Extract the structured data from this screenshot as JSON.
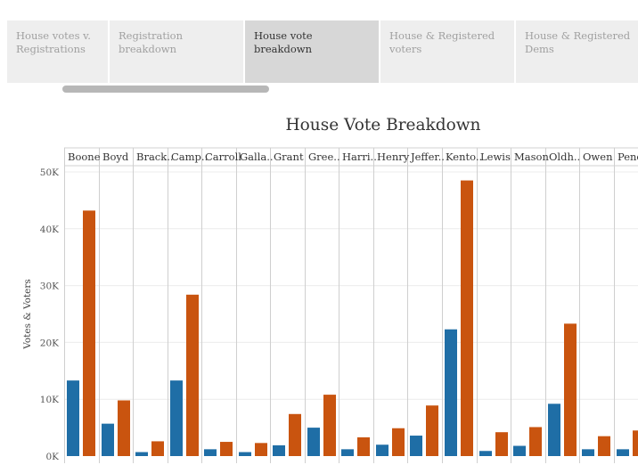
{
  "tabs": [
    {
      "label": "House votes v. Registrations",
      "active": false
    },
    {
      "label": "Registration breakdown",
      "active": false
    },
    {
      "label": "House vote breakdown",
      "active": true
    },
    {
      "label": "House & Registered voters",
      "active": false
    },
    {
      "label": "House & Registered Dems",
      "active": false
    }
  ],
  "chart_data": {
    "type": "bar",
    "title": "House Vote Breakdown",
    "xlabel": "",
    "ylabel": "Votes & Voters",
    "ylim": [
      0,
      50000
    ],
    "yticks": [
      0,
      10000,
      20000,
      30000,
      40000,
      50000
    ],
    "ytick_labels": [
      "0K",
      "10K",
      "20K",
      "30K",
      "40K",
      "50K"
    ],
    "grid": true,
    "categories": [
      "Boone",
      "Boyd",
      "Brack..",
      "Camp..",
      "Carroll",
      "Galla..",
      "Grant",
      "Gree..",
      "Harri..",
      "Henry",
      "Jeffer..",
      "Kento..",
      "Lewis",
      "Mason",
      "Oldh..",
      "Owen",
      "Pend"
    ],
    "series": [
      {
        "color": "#1f6ea6",
        "values": [
          13300,
          5700,
          700,
          13300,
          1200,
          700,
          1900,
          5000,
          1200,
          2000,
          3600,
          22300,
          900,
          1800,
          9200,
          1200,
          1200
        ]
      },
      {
        "color": "#c9540f",
        "values": [
          43200,
          9800,
          2600,
          28400,
          2500,
          2300,
          7400,
          10800,
          3300,
          4900,
          8900,
          48500,
          4200,
          5100,
          23300,
          3500,
          4500
        ]
      }
    ]
  }
}
